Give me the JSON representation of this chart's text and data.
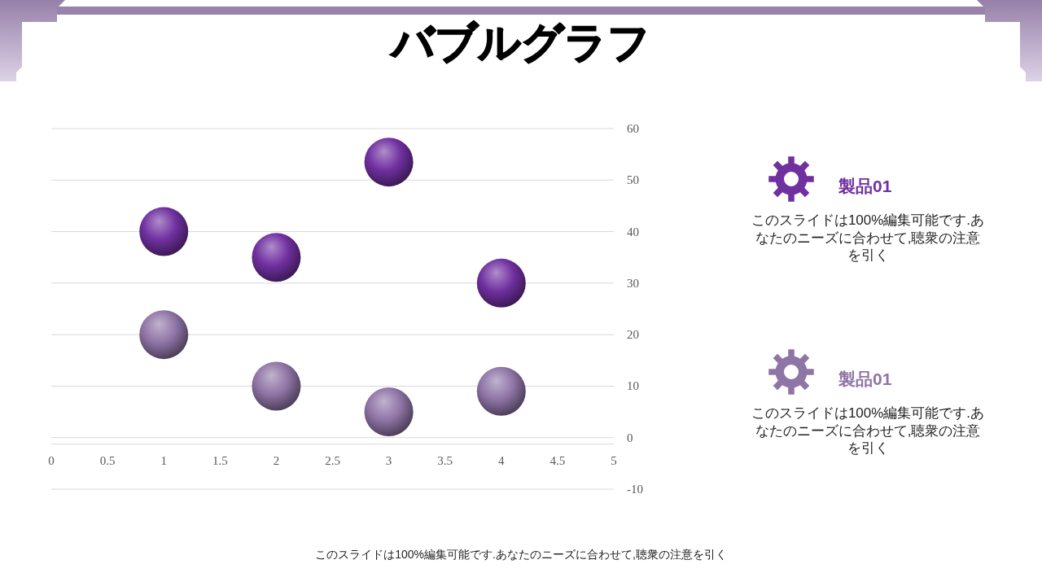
{
  "chart_data": {
    "type": "bubble",
    "title": "バブルグラフ",
    "x": [
      1,
      2,
      3,
      4
    ],
    "series": [
      {
        "name": "製品01",
        "color": "#7030a0",
        "values": [
          40,
          35,
          53.5,
          30
        ],
        "sizes": [
          1,
          1,
          1,
          1
        ]
      },
      {
        "name": "製品01",
        "color": "#8f74a6",
        "values": [
          20,
          10,
          5,
          9
        ],
        "sizes": [
          1,
          1,
          1,
          1
        ]
      }
    ],
    "xlim": [
      0,
      5
    ],
    "xticks": [
      0,
      0.5,
      1,
      1.5,
      2,
      2.5,
      3,
      3.5,
      4,
      4.5,
      5
    ],
    "ylim": [
      -10,
      60
    ],
    "yticks": [
      -10,
      0,
      10,
      20,
      30,
      40,
      50,
      60
    ],
    "grid": "y",
    "legend": "right",
    "annotations": [
      "このスライドは100%編集可能です.あなたのニーズに合わせて,聴衆の注意を引く",
      "このスライドは100%編集可能です.あなたのニーズに合わせて,聴衆の注意を引く",
      "このスライドは100%編集可能です.あなたのニーズに合わせて,聴衆の注意を引く"
    ]
  }
}
